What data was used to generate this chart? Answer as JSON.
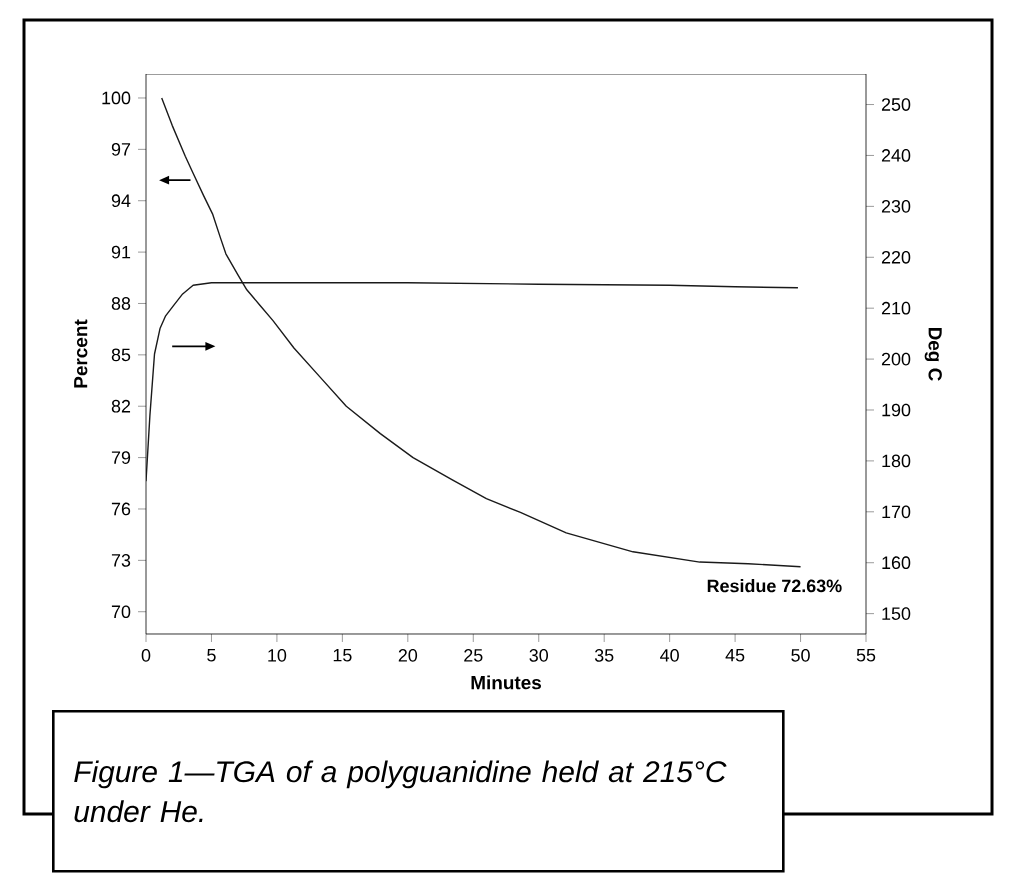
{
  "chart_data": {
    "type": "line",
    "xlabel": "Minutes",
    "ylabel": "Percent",
    "y2label": "Deg C",
    "xlim": [
      0,
      55
    ],
    "xticks": [
      0,
      5,
      10,
      15,
      20,
      25,
      30,
      35,
      40,
      45,
      50,
      55
    ],
    "ylim": [
      68.7,
      101.4
    ],
    "yticks": [
      70,
      73,
      76,
      79,
      82,
      85,
      88,
      91,
      94,
      97,
      100
    ],
    "y2lim": [
      146,
      256
    ],
    "y2ticks": [
      150,
      160,
      170,
      180,
      190,
      200,
      210,
      220,
      230,
      240,
      250
    ],
    "series": [
      {
        "color": "#1a1a1a",
        "x": [
          1.2,
          2.0,
          3.0,
          3.6,
          4.4,
          5.1,
          5.7,
          6.1,
          7.0,
          7.7,
          8.7,
          9.7,
          11.3,
          13.3,
          15.3,
          17.9,
          20.4,
          23.4,
          26.0,
          28.6,
          32.1,
          37.2,
          42.3,
          46.0,
          50.0
        ],
        "values": [
          100,
          98.4,
          96.6,
          95.6,
          94.3,
          93.2,
          91.8,
          90.9,
          89.7,
          88.8,
          87.9,
          87.0,
          85.4,
          83.7,
          82.0,
          80.4,
          79.0,
          77.7,
          76.6,
          75.8,
          74.6,
          73.5,
          72.9,
          72.8,
          72.63
        ]
      },
      {
        "color": "#1a1a1a",
        "axis": "y2",
        "x": [
          0,
          0.3,
          0.65,
          1.07,
          1.5,
          2.1,
          2.8,
          3.6,
          5,
          10,
          20,
          30,
          40,
          45,
          49.8
        ],
        "values": [
          176,
          189,
          201,
          206,
          208.5,
          210.5,
          212.8,
          214.5,
          215,
          215,
          215,
          214.7,
          214.5,
          214.2,
          214
        ]
      }
    ],
    "annotations": [
      {
        "text": "Residue 72.63%",
        "x": 50,
        "y": 72.63
      },
      "Figure 1—TGA of a polyguanidine held at 215°C under He."
    ]
  }
}
